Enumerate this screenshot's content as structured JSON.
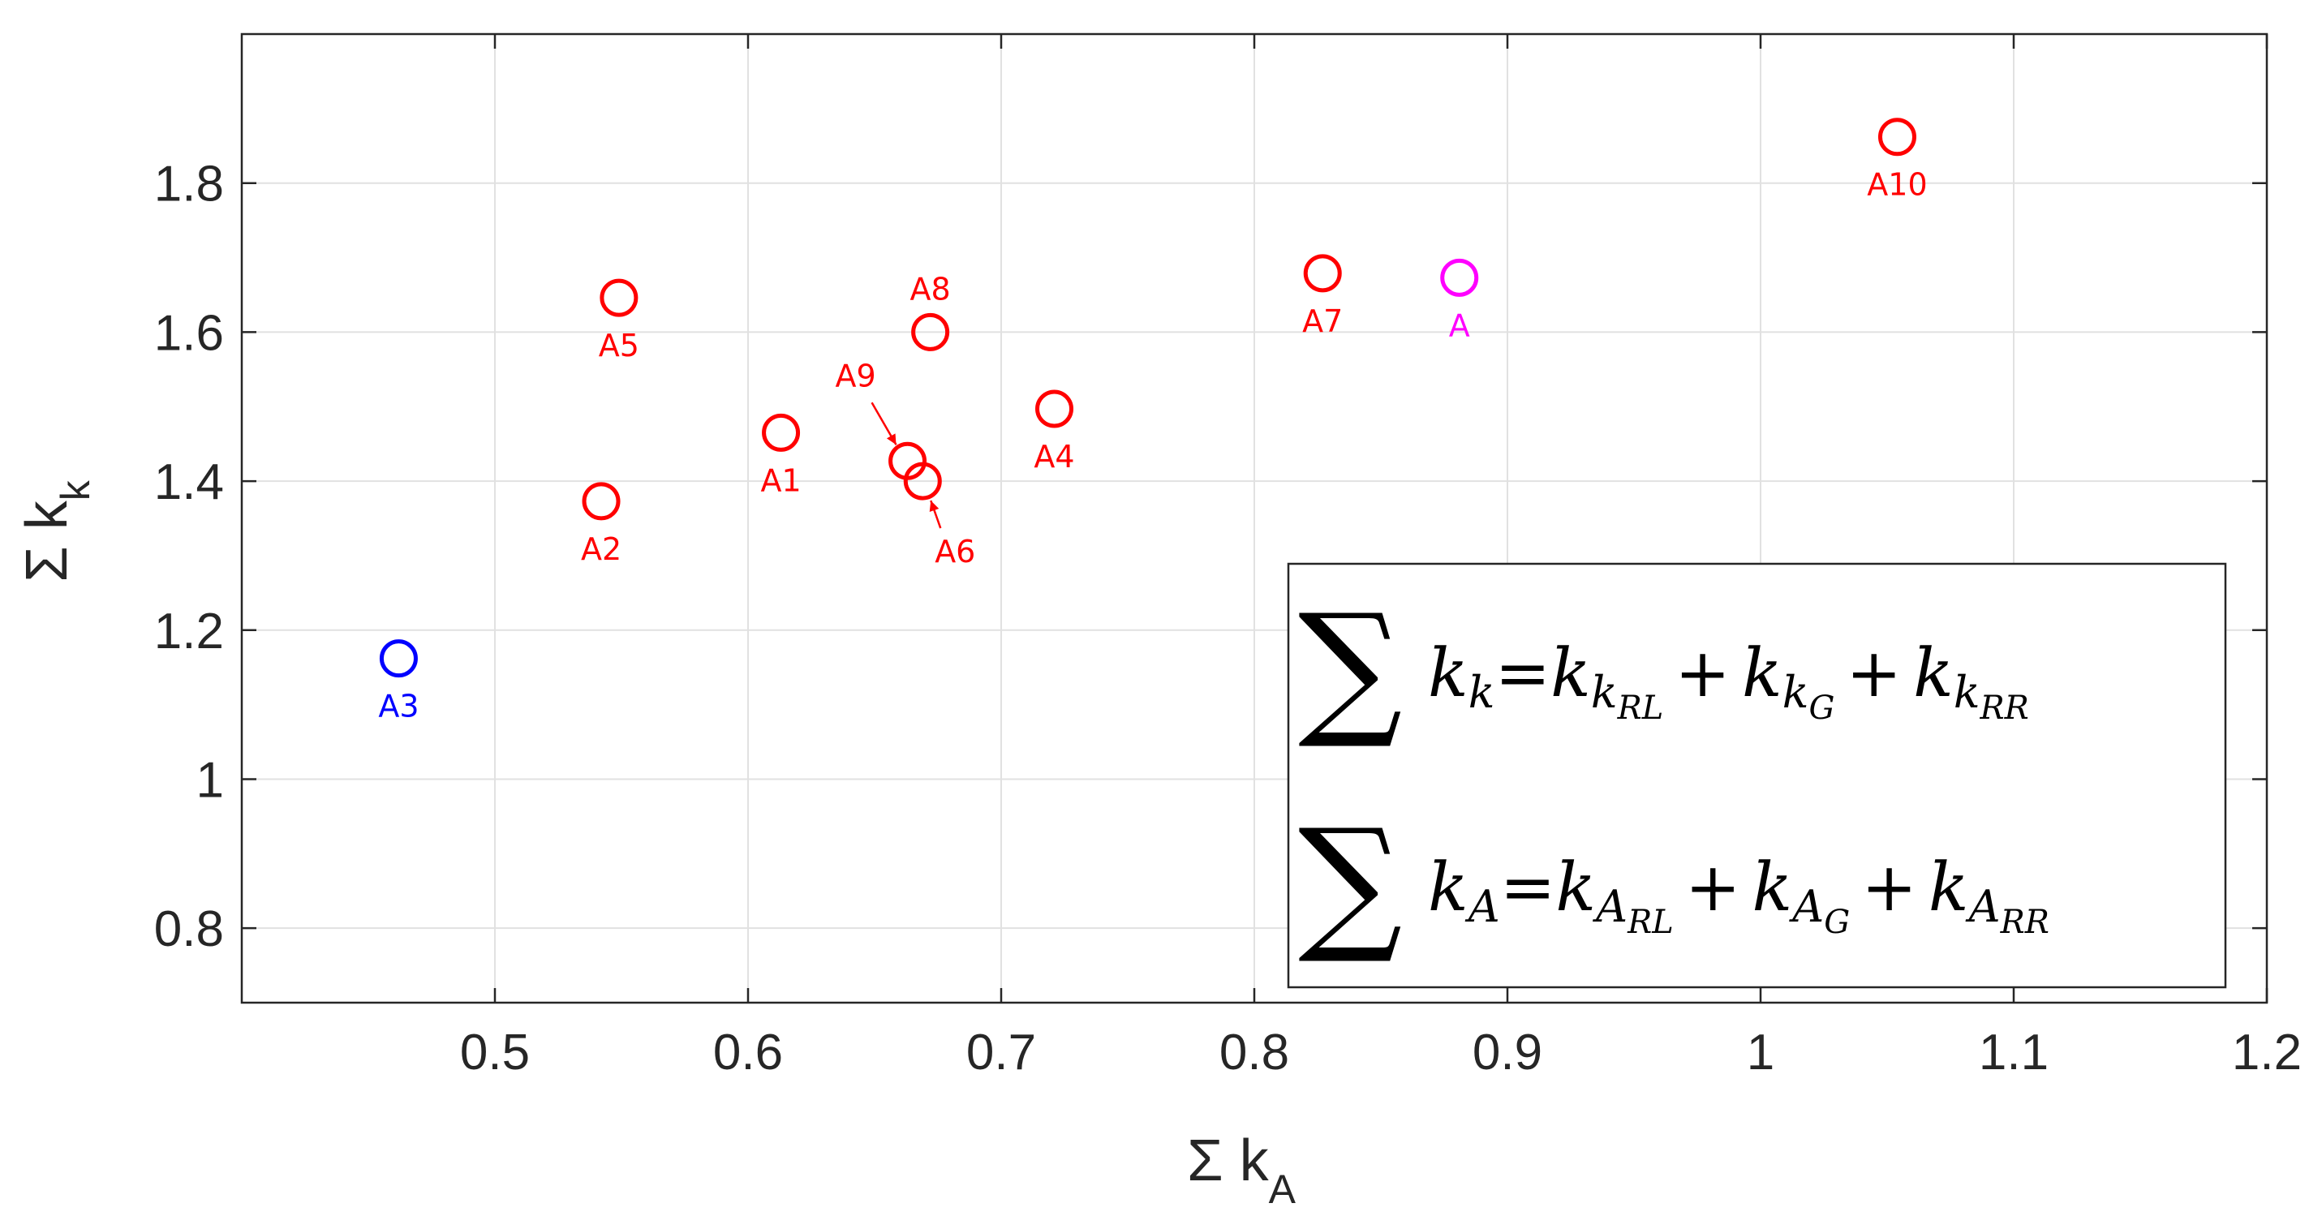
{
  "chart_data": {
    "type": "scatter",
    "title": "",
    "xlabel": {
      "main": "Σ k",
      "sub": "A"
    },
    "ylabel": {
      "main": "Σ k",
      "sub": "k"
    },
    "xlim": [
      0.4,
      1.2
    ],
    "ylim": [
      0.7,
      2.0
    ],
    "xticks": [
      0.5,
      0.6,
      0.7,
      0.8,
      0.9,
      1,
      1.1,
      1.2
    ],
    "xtick_labels": [
      "0.5",
      "0.6",
      "0.7",
      "0.8",
      "0.9",
      "1",
      "1.1",
      "1.2"
    ],
    "yticks": [
      0.8,
      1.0,
      1.2,
      1.4,
      1.6,
      1.8
    ],
    "ytick_labels": [
      "0.8",
      "1",
      "1.2",
      "1.4",
      "1.6",
      "1.8"
    ],
    "grid": true,
    "marker": "circle-open",
    "colors": {
      "red": "#ff0000",
      "blue": "#0000ff",
      "magenta": "#ff00ff"
    },
    "points": [
      {
        "label": "A1",
        "x": 0.613,
        "y": 1.465,
        "color": "red",
        "label_pos": "below"
      },
      {
        "label": "A2",
        "x": 0.542,
        "y": 1.373,
        "color": "red",
        "label_pos": "below"
      },
      {
        "label": "A3",
        "x": 0.462,
        "y": 1.162,
        "color": "blue",
        "label_pos": "below"
      },
      {
        "label": "A4",
        "x": 0.721,
        "y": 1.497,
        "color": "red",
        "label_pos": "below"
      },
      {
        "label": "A5",
        "x": 0.549,
        "y": 1.646,
        "color": "red",
        "label_pos": "below"
      },
      {
        "label": "A6",
        "x": 0.669,
        "y": 1.4,
        "color": "red",
        "label_pos": "below-right-arrow"
      },
      {
        "label": "A7",
        "x": 0.827,
        "y": 1.679,
        "color": "red",
        "label_pos": "below"
      },
      {
        "label": "A8",
        "x": 0.672,
        "y": 1.6,
        "color": "red",
        "label_pos": "above"
      },
      {
        "label": "A9",
        "x": 0.663,
        "y": 1.427,
        "color": "red",
        "label_pos": "above-left-arrow"
      },
      {
        "label": "A10",
        "x": 1.054,
        "y": 1.862,
        "color": "red",
        "label_pos": "below"
      },
      {
        "label": "A",
        "x": 0.881,
        "y": 1.673,
        "color": "magenta",
        "label_pos": "below"
      }
    ],
    "legend": {
      "placement": "bottom-right",
      "formulas": [
        {
          "sum": "∑",
          "lhs": "k",
          "lhs_sub": "k",
          "eq": "=",
          "terms": [
            {
              "base": "k",
              "sub": "k",
              "subsub": "RL"
            },
            {
              "base": "k",
              "sub": "k",
              "subsub": "G"
            },
            {
              "base": "k",
              "sub": "k",
              "subsub": "RR"
            }
          ]
        },
        {
          "sum": "∑",
          "lhs": "k",
          "lhs_sub": "A",
          "eq": "=",
          "terms": [
            {
              "base": "k",
              "sub": "A",
              "subsub": "RL"
            },
            {
              "base": "k",
              "sub": "A",
              "subsub": "G"
            },
            {
              "base": "k",
              "sub": "A",
              "subsub": "RR"
            }
          ]
        }
      ],
      "plus": "+"
    }
  }
}
